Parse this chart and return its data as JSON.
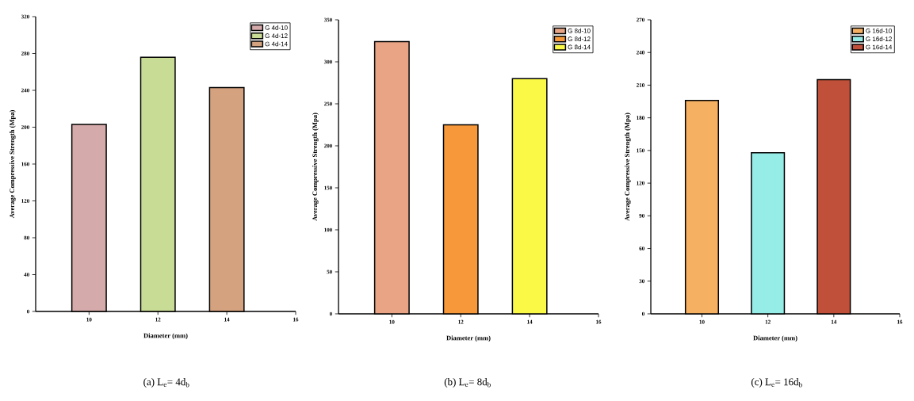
{
  "chart_data": [
    {
      "type": "bar",
      "xlabel": "Diameter (mm)",
      "ylabel": "Average Compressive Strength (Mpa)",
      "x": [
        10,
        12,
        14
      ],
      "xlim": [
        8.45,
        16
      ],
      "xticks": [
        10,
        12,
        14,
        16
      ],
      "ylim": [
        0,
        320
      ],
      "yticks": [
        0,
        40,
        80,
        120,
        160,
        200,
        240,
        280,
        320
      ],
      "legend": "top right",
      "annotations": [
        "(a) L$_{e}$= 4d$_{b}$"
      ],
      "series": [
        {
          "name": "G 4d-10",
          "color": "#d4aaaa",
          "values": [
            203,
            null,
            null
          ]
        },
        {
          "name": "G 4d-12",
          "color": "#c8dc96",
          "values": [
            null,
            276,
            null
          ]
        },
        {
          "name": "G 4d-14",
          "color": "#d4a27f",
          "values": [
            null,
            null,
            243
          ]
        }
      ]
    },
    {
      "type": "bar",
      "xlabel": "Diameter (mm)",
      "ylabel": "Average Compressive Strength (Mpa)",
      "x": [
        10,
        12,
        14
      ],
      "xlim": [
        8.45,
        16
      ],
      "xticks": [
        10,
        12,
        14,
        16
      ],
      "ylim": [
        0,
        350
      ],
      "yticks": [
        0,
        50,
        100,
        150,
        200,
        250,
        300,
        350
      ],
      "legend": "top right",
      "annotations": [
        "(b) L$_{e}$= 8d$_{b}$"
      ],
      "series": [
        {
          "name": "G 8d-10",
          "color": "#e8a484",
          "values": [
            324,
            null,
            null
          ]
        },
        {
          "name": "G 8d-12",
          "color": "#f7993a",
          "values": [
            null,
            225,
            null
          ]
        },
        {
          "name": "G 8d-14",
          "color": "#fafa46",
          "values": [
            null,
            null,
            280
          ]
        }
      ]
    },
    {
      "type": "bar",
      "xlabel": "Diameter (mm)",
      "ylabel": "Average Compressive Strength (Mpa)",
      "x": [
        10,
        12,
        14
      ],
      "xlim": [
        8.45,
        16
      ],
      "xticks": [
        10,
        12,
        14,
        16
      ],
      "ylim": [
        0,
        270
      ],
      "yticks": [
        0,
        30,
        60,
        90,
        120,
        150,
        180,
        210,
        240,
        270
      ],
      "legend": "top right",
      "annotations": [
        "(c) L$_{e}$= 16d$_{b}$"
      ],
      "series": [
        {
          "name": "G 16d-10",
          "color": "#f5b062",
          "values": [
            196,
            null,
            null
          ]
        },
        {
          "name": "G 16d-12",
          "color": "#96ece6",
          "values": [
            null,
            148,
            null
          ]
        },
        {
          "name": "G 16d-14",
          "color": "#c1503a",
          "values": [
            null,
            null,
            215
          ]
        }
      ]
    }
  ]
}
